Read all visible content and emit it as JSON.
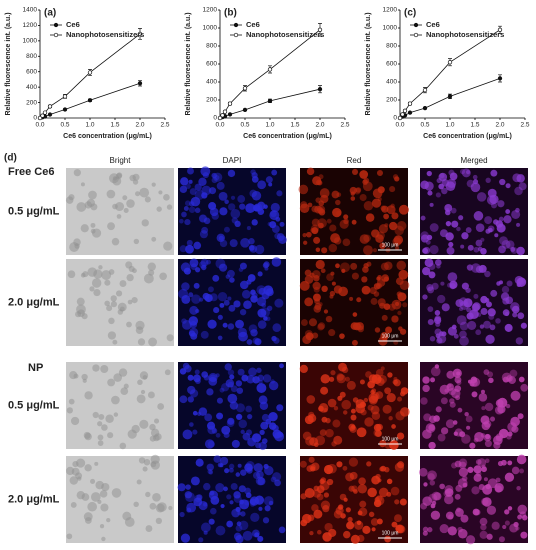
{
  "chart_data": [
    {
      "type": "line",
      "label": "(a)",
      "x_label": "Ce6 concentration (μg/mL)",
      "y_label": "Relative fluorescence int. (a.u.)",
      "x": [
        0,
        0.05,
        0.1,
        0.2,
        0.5,
        1.0,
        2.0
      ],
      "series": [
        {
          "name": "Ce6",
          "color": "#111111",
          "marker": "filled",
          "values": [
            0,
            10,
            20,
            45,
            110,
            230,
            450
          ],
          "errors": [
            0,
            3,
            5,
            5,
            10,
            15,
            35
          ]
        },
        {
          "name": "Nanophotosensitizers",
          "color": "#111111",
          "marker": "open",
          "values": [
            0,
            30,
            70,
            150,
            280,
            590,
            1090
          ],
          "errors": [
            0,
            5,
            10,
            15,
            25,
            40,
            70
          ]
        }
      ],
      "xlim": [
        0,
        2.5
      ],
      "xticks": [
        {
          "value": 0,
          "label": "0.0"
        },
        0.5,
        {
          "value": 1,
          "label": "1.0"
        },
        1.5,
        {
          "value": 2,
          "label": "2.0"
        },
        2.5
      ],
      "ylim": [
        0,
        1400
      ],
      "yticks": [
        0,
        200,
        400,
        600,
        800,
        1000,
        1200,
        1400
      ],
      "legend": "upper-left"
    },
    {
      "type": "line",
      "label": "(b)",
      "x_label": "Ce6 concentration (μg/mL)",
      "y_label": "Relative fluorescence int. (a.u.)",
      "x": [
        0,
        0.05,
        0.1,
        0.2,
        0.5,
        1.0,
        2.0
      ],
      "series": [
        {
          "name": "Ce6",
          "color": "#111111",
          "marker": "filled",
          "values": [
            0,
            10,
            20,
            40,
            90,
            190,
            320
          ],
          "errors": [
            0,
            3,
            5,
            8,
            10,
            20,
            40
          ]
        },
        {
          "name": "Nanophotosensitizers",
          "color": "#111111",
          "marker": "open",
          "values": [
            0,
            30,
            70,
            160,
            330,
            540,
            980
          ],
          "errors": [
            0,
            5,
            10,
            15,
            30,
            40,
            70
          ]
        }
      ],
      "xlim": [
        0,
        2.5
      ],
      "xticks": [
        {
          "value": 0,
          "label": "0.0"
        },
        0.5,
        {
          "value": 1,
          "label": "1.0"
        },
        1.5,
        {
          "value": 2,
          "label": "2.0"
        },
        2.5
      ],
      "ylim": [
        0,
        1200
      ],
      "yticks": [
        0,
        200,
        400,
        600,
        800,
        1000,
        1200
      ],
      "legend": "upper-left"
    },
    {
      "type": "line",
      "label": "(c)",
      "x_label": "Ce6 concentration (μg/mL)",
      "y_label": "Relative fluorescence int. (a.u.)",
      "x": [
        0,
        0.05,
        0.1,
        0.2,
        0.5,
        1.0,
        2.0
      ],
      "series": [
        {
          "name": "Ce6",
          "color": "#111111",
          "marker": "filled",
          "values": [
            0,
            15,
            30,
            60,
            110,
            240,
            440
          ],
          "errors": [
            0,
            3,
            5,
            8,
            10,
            25,
            40
          ]
        },
        {
          "name": "Nanophotosensitizers",
          "color": "#111111",
          "marker": "open",
          "values": [
            0,
            40,
            80,
            160,
            310,
            620,
            980
          ],
          "errors": [
            0,
            5,
            10,
            15,
            30,
            40,
            40
          ]
        }
      ],
      "xlim": [
        0,
        2.5
      ],
      "xticks": [
        {
          "value": 0,
          "label": "0.0"
        },
        0.5,
        {
          "value": 1,
          "label": "1.0"
        },
        1.5,
        {
          "value": 2,
          "label": "2.0"
        },
        2.5
      ],
      "ylim": [
        0,
        1200
      ],
      "yticks": [
        0,
        200,
        400,
        600,
        800,
        1000,
        1200
      ],
      "legend": "upper-left"
    }
  ],
  "panel_d": {
    "label": "(d)",
    "columns": [
      "Bright",
      "DAPI",
      "Red",
      "Merged"
    ],
    "groups": [
      {
        "name": "Free Ce6",
        "rows": [
          "0.5 μg/mL",
          "2.0 μg/mL"
        ]
      },
      {
        "name": "NP",
        "rows": [
          "0.5 μg/mL",
          "2.0 μg/mL"
        ]
      }
    ],
    "scale_bar": "100 μm"
  }
}
